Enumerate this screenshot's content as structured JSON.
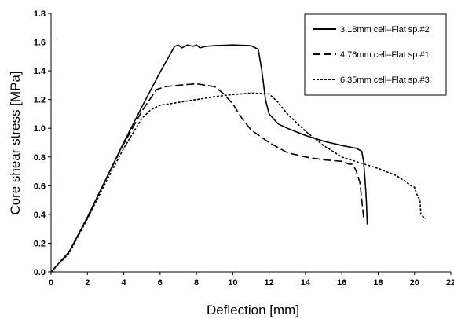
{
  "chart_data": {
    "type": "line",
    "xlabel": "Deflection [mm]",
    "ylabel": "Core shear stress [MPa]",
    "xlim": [
      0,
      22
    ],
    "ylim": [
      0,
      1.8
    ],
    "x_ticks": [
      0,
      2,
      4,
      6,
      8,
      10,
      12,
      14,
      16,
      18,
      20,
      22
    ],
    "y_ticks": [
      0.0,
      0.2,
      0.4,
      0.6,
      0.8,
      1.0,
      1.2,
      1.4,
      1.6,
      1.8
    ],
    "x_tick_labels": [
      "0",
      "2",
      "4",
      "6",
      "8",
      "10",
      "12",
      "14",
      "16",
      "18",
      "20",
      "22"
    ],
    "y_tick_labels": [
      "0.0",
      "0.2",
      "0.4",
      "0.6",
      "0.8",
      "1.0",
      "1.2",
      "1.4",
      "1.6",
      "1.8"
    ],
    "grid": false,
    "legend_position": "top-right",
    "series": [
      {
        "name": "3.18mm cell–Flat sp.#2",
        "style": "solid",
        "color": "#000000",
        "points": [
          [
            0,
            0
          ],
          [
            1,
            0.14
          ],
          [
            2,
            0.38
          ],
          [
            3,
            0.64
          ],
          [
            4,
            0.9
          ],
          [
            5,
            1.15
          ],
          [
            6,
            1.39
          ],
          [
            6.8,
            1.57
          ],
          [
            7,
            1.58
          ],
          [
            7.2,
            1.56
          ],
          [
            7.5,
            1.58
          ],
          [
            7.8,
            1.57
          ],
          [
            8,
            1.58
          ],
          [
            8.2,
            1.56
          ],
          [
            8.5,
            1.57
          ],
          [
            9,
            1.575
          ],
          [
            10,
            1.58
          ],
          [
            11,
            1.575
          ],
          [
            11.4,
            1.55
          ],
          [
            11.6,
            1.4
          ],
          [
            11.8,
            1.2
          ],
          [
            12,
            1.1
          ],
          [
            12.5,
            1.03
          ],
          [
            13,
            1.0
          ],
          [
            14,
            0.95
          ],
          [
            15,
            0.91
          ],
          [
            16,
            0.88
          ],
          [
            16.8,
            0.86
          ],
          [
            17.1,
            0.84
          ],
          [
            17.2,
            0.77
          ],
          [
            17.3,
            0.6
          ],
          [
            17.35,
            0.5
          ],
          [
            17.4,
            0.33
          ]
        ]
      },
      {
        "name": "4.76mm cell–Flat sp.#1",
        "style": "dashed",
        "color": "#000000",
        "points": [
          [
            0,
            0
          ],
          [
            1,
            0.14
          ],
          [
            2,
            0.38
          ],
          [
            3,
            0.64
          ],
          [
            4,
            0.89
          ],
          [
            5,
            1.12
          ],
          [
            5.8,
            1.27
          ],
          [
            6.3,
            1.29
          ],
          [
            7,
            1.3
          ],
          [
            8,
            1.31
          ],
          [
            9,
            1.29
          ],
          [
            9.5,
            1.24
          ],
          [
            10,
            1.17
          ],
          [
            10.5,
            1.07
          ],
          [
            11,
            0.99
          ],
          [
            12,
            0.9
          ],
          [
            13,
            0.83
          ],
          [
            14,
            0.8
          ],
          [
            15,
            0.78
          ],
          [
            16,
            0.77
          ],
          [
            16.4,
            0.75
          ],
          [
            16.6,
            0.75
          ],
          [
            16.8,
            0.7
          ],
          [
            17,
            0.62
          ],
          [
            17.1,
            0.5
          ],
          [
            17.2,
            0.38
          ]
        ]
      },
      {
        "name": "6.35mm cell–Flat sp.#3",
        "style": "dotted",
        "color": "#000000",
        "points": [
          [
            0,
            0
          ],
          [
            1,
            0.13
          ],
          [
            2,
            0.37
          ],
          [
            3,
            0.62
          ],
          [
            4,
            0.86
          ],
          [
            5,
            1.07
          ],
          [
            5.5,
            1.13
          ],
          [
            6,
            1.16
          ],
          [
            7,
            1.18
          ],
          [
            8,
            1.2
          ],
          [
            9,
            1.22
          ],
          [
            10,
            1.235
          ],
          [
            11,
            1.245
          ],
          [
            12,
            1.24
          ],
          [
            12.5,
            1.18
          ],
          [
            13,
            1.1
          ],
          [
            13.5,
            1.04
          ],
          [
            14,
            0.98
          ],
          [
            15,
            0.88
          ],
          [
            16,
            0.8
          ],
          [
            17,
            0.76
          ],
          [
            18,
            0.72
          ],
          [
            19,
            0.67
          ],
          [
            19.5,
            0.63
          ],
          [
            19.8,
            0.6
          ],
          [
            20,
            0.59
          ],
          [
            20.1,
            0.55
          ],
          [
            20.2,
            0.52
          ],
          [
            20.3,
            0.5
          ],
          [
            20.35,
            0.4
          ],
          [
            20.6,
            0.37
          ]
        ]
      }
    ]
  }
}
